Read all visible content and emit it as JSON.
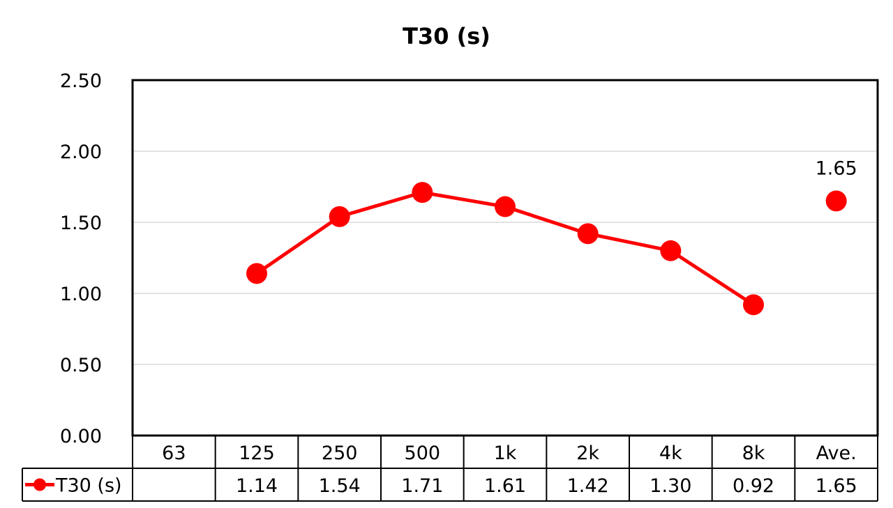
{
  "chart_data": {
    "type": "line",
    "title": "T30 (s)",
    "categories": [
      "63",
      "125",
      "250",
      "500",
      "1k",
      "2k",
      "4k",
      "8k",
      "Ave."
    ],
    "series": [
      {
        "name": "T30 (s)",
        "values": [
          null,
          1.14,
          1.54,
          1.71,
          1.61,
          1.42,
          1.3,
          0.92,
          1.65
        ],
        "table_values": [
          "",
          "1.14",
          "1.54",
          "1.71",
          "1.61",
          "1.42",
          "1.30",
          "0.92",
          "1.65"
        ],
        "color": "#ff0000"
      }
    ],
    "average_label": "1.65",
    "ylim": [
      0,
      2.5
    ],
    "yticks": [
      "0.00",
      "0.50",
      "1.00",
      "1.50",
      "2.00",
      "2.50"
    ],
    "ytick_values": [
      0,
      0.5,
      1.0,
      1.5,
      2.0,
      2.5
    ],
    "grid": true,
    "legend": "data-table"
  }
}
